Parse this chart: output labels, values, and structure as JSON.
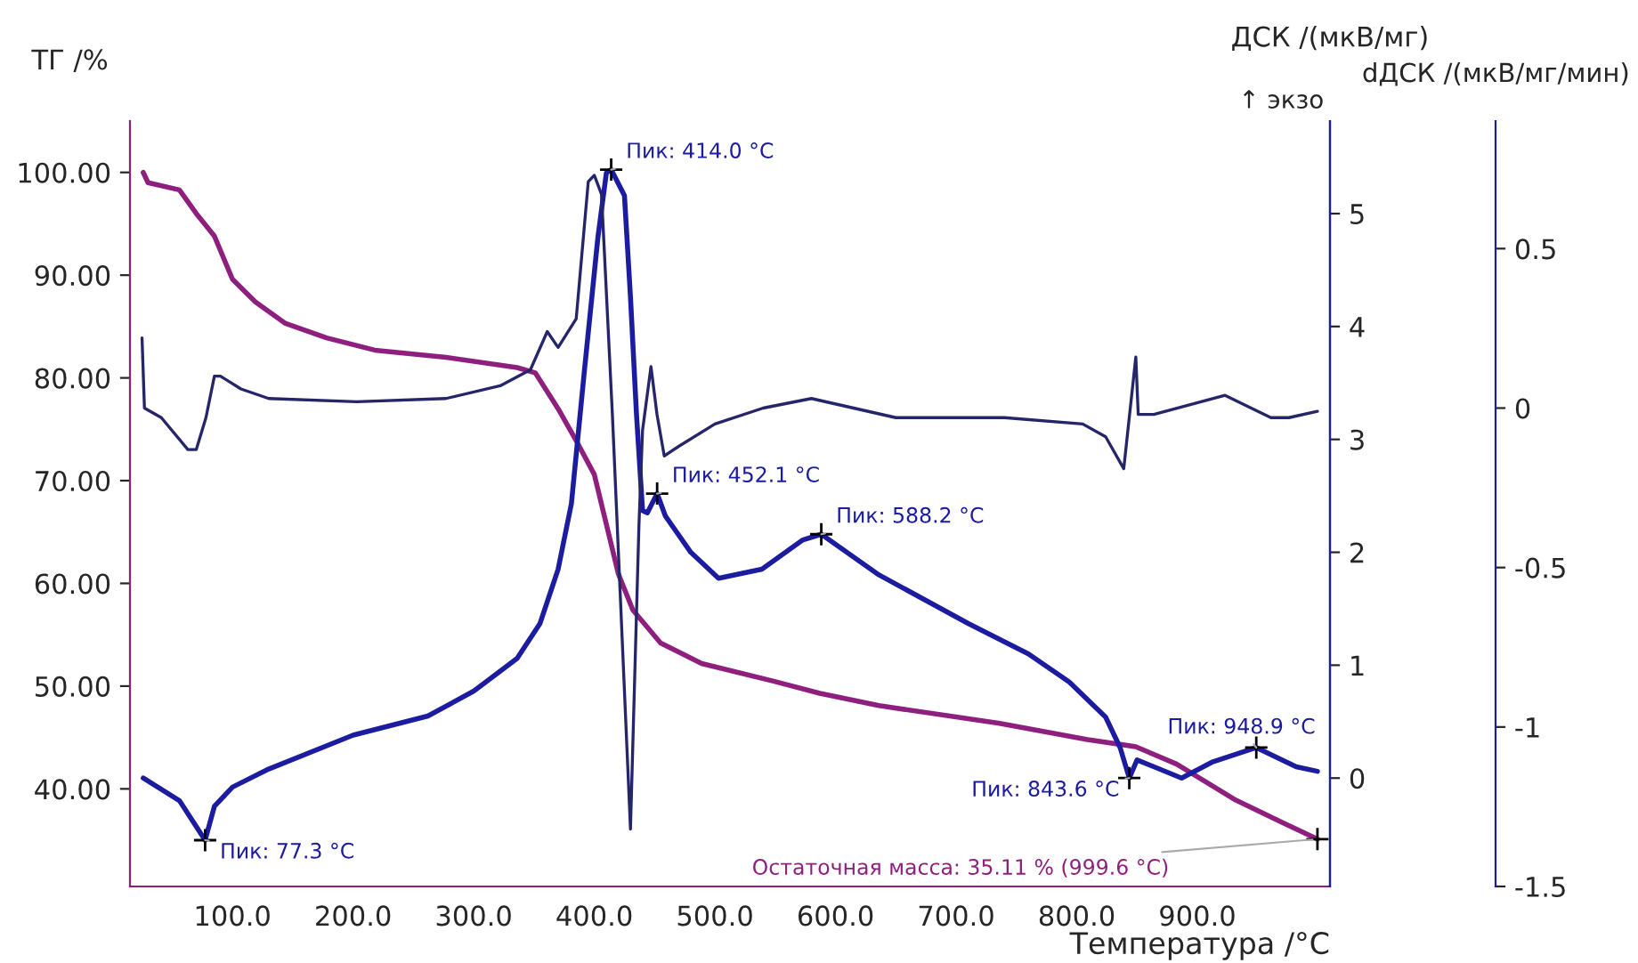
{
  "chart_data": {
    "type": "line",
    "xlabel": "Температура /°C",
    "ylabel": "ТГ /%",
    "y2label": "ДСК /(мкВ/мг)",
    "y3label": "dДСК /(мкВ/мг/мин)",
    "xlim": [
      15,
      1010
    ],
    "ylim": [
      30.5,
      105
    ],
    "y2lim": [
      -0.96,
      5.82
    ],
    "y3lim": [
      -1.5,
      0.9
    ],
    "xticks": [
      {
        "value": 100,
        "label": "100.0"
      },
      {
        "value": 200,
        "label": "200.0"
      },
      {
        "value": 300,
        "label": "300.0"
      },
      {
        "value": 400,
        "label": "400.0"
      },
      {
        "value": 500,
        "label": "500.0"
      },
      {
        "value": 600,
        "label": "600.0"
      },
      {
        "value": 700,
        "label": "700.0"
      },
      {
        "value": 800,
        "label": "800.0"
      },
      {
        "value": 900,
        "label": "900.0"
      }
    ],
    "yticks": [
      {
        "value": 40,
        "label": "40.00"
      },
      {
        "value": 50,
        "label": "50.00"
      },
      {
        "value": 60,
        "label": "60.00"
      },
      {
        "value": 70,
        "label": "70.00"
      },
      {
        "value": 80,
        "label": "80.00"
      },
      {
        "value": 90,
        "label": "90.00"
      },
      {
        "value": 100,
        "label": "100.00"
      }
    ],
    "y2ticks": [
      0,
      1,
      2,
      3,
      4,
      5
    ],
    "y3ticks": [
      -1.5,
      -1,
      -0.5,
      0,
      0.5
    ],
    "grid": false,
    "legend": false,
    "marker": "none",
    "line_style": "solid",
    "series": [
      {
        "color": "#8e1f7e",
        "x": [
          26,
          30,
          56,
          70,
          85,
          100,
          119,
          144,
          178,
          218,
          277,
          336,
          351,
          370,
          385,
          400,
          420,
          432,
          455,
          489,
          548,
          587,
          636,
          735,
          809,
          849,
          883,
          932,
          971,
          999.6
        ],
        "values": [
          100.0,
          99.0,
          98.3,
          96.0,
          93.8,
          89.6,
          87.4,
          85.3,
          83.9,
          82.7,
          82.0,
          81.0,
          80.5,
          77.0,
          73.9,
          70.6,
          60.9,
          57.4,
          54.2,
          52.2,
          50.5,
          49.3,
          48.1,
          46.4,
          44.8,
          44.1,
          42.4,
          38.9,
          36.7,
          35.11
        ]
      },
      {
        "color": "#1c1ca0",
        "axis": "y2",
        "x": [
          26,
          56,
          77.3,
          85,
          100,
          130,
          200,
          262,
          300,
          336,
          355,
          370,
          381,
          392,
          403,
          410,
          414,
          425,
          430,
          435,
          440,
          444,
          452.1,
          459,
          480,
          503,
          539,
          573,
          588.2,
          636,
          710,
          760,
          794,
          824,
          836,
          843.6,
          850,
          864,
          887,
          912,
          948.9,
          982,
          999.6
        ],
        "values": [
          0.0,
          -0.2,
          -0.55,
          -0.25,
          -0.08,
          0.08,
          0.38,
          0.55,
          0.77,
          1.06,
          1.37,
          1.85,
          2.43,
          3.63,
          4.79,
          5.36,
          5.39,
          5.16,
          4.26,
          3.22,
          2.37,
          2.35,
          2.52,
          2.32,
          2.0,
          1.77,
          1.85,
          2.11,
          2.16,
          1.8,
          1.37,
          1.1,
          0.85,
          0.54,
          0.27,
          0.0,
          0.16,
          0.1,
          0.0,
          0.14,
          0.27,
          0.1,
          0.06
        ]
      },
      {
        "color": "#25256a",
        "axis": "y3",
        "x": [
          25,
          27,
          41,
          63,
          70,
          78,
          85,
          90,
          107,
          130,
          203,
          277,
          322,
          347,
          361,
          370,
          385,
          395,
          400,
          406,
          415,
          430,
          437,
          440,
          447,
          452,
          458,
          470,
          500,
          540,
          580,
          650,
          740,
          805,
          824,
          839,
          849,
          851,
          864,
          923,
          961,
          976,
          999.6
        ],
        "values": [
          0.22,
          0.0,
          -0.03,
          -0.13,
          -0.13,
          -0.03,
          0.1,
          0.1,
          0.06,
          0.03,
          0.02,
          0.03,
          0.07,
          0.12,
          0.24,
          0.19,
          0.28,
          0.71,
          0.73,
          0.67,
          -0.02,
          -1.32,
          -0.37,
          -0.07,
          0.13,
          -0.02,
          -0.15,
          -0.12,
          -0.05,
          0.0,
          0.03,
          -0.03,
          -0.03,
          -0.05,
          -0.09,
          -0.19,
          0.16,
          -0.02,
          -0.02,
          0.04,
          -0.03,
          -0.03,
          -0.01
        ]
      }
    ],
    "annotations": [
      {
        "text": "Пик: 77.3 °C",
        "x": 77.3
      },
      {
        "text": "Пик: 414.0 °C",
        "x": 414
      },
      {
        "text": "Пик: 452.1 °C",
        "x": 452.1
      },
      {
        "text": "Пик: 588.2 °C",
        "x": 588.2
      },
      {
        "text": "Пик: 843.6 °C",
        "x": 843.6
      },
      {
        "text": "Пик: 948.9 °C",
        "x": 948.9
      },
      {
        "text": "Остаточная масса: 35.11 % (999.6 °C)",
        "x": 999.6,
        "y": 35.11
      },
      "↑ экзо"
    ]
  }
}
